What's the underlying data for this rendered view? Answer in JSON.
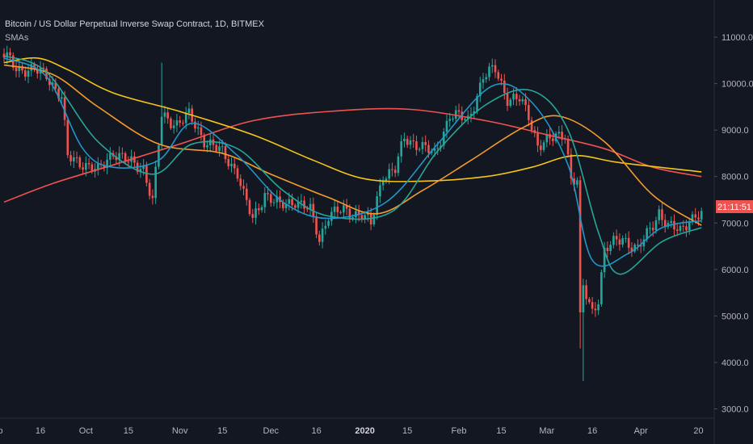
{
  "header": {
    "title": "Bitcoin / US Dollar Perpetual Inverse Swap Contract, 1D, BITMEX",
    "indicator": "SMAs"
  },
  "current_price_label": "21:11:51",
  "colors": {
    "background": "#131722",
    "up": "#26a69a",
    "down": "#ef5350",
    "axis_text": "#b2b5be",
    "price_tag": "#ef5350"
  },
  "chart_data": {
    "type": "candlestick",
    "title": "Bitcoin / US Dollar Perpetual Inverse Swap Contract, 1D, BITMEX",
    "ylim": [
      2800,
      11800
    ],
    "y_ticks": [
      {
        "value": 11000,
        "label": "11000.0"
      },
      {
        "value": 10000,
        "label": "10000.0"
      },
      {
        "value": 9000,
        "label": "9000.0"
      },
      {
        "value": 8000,
        "label": "8000.0"
      },
      {
        "value": 7000,
        "label": "7000.0"
      },
      {
        "value": 6000,
        "label": "6000.0"
      },
      {
        "value": 5000,
        "label": "5000.0"
      },
      {
        "value": 4000,
        "label": "4000.0"
      },
      {
        "value": 3000,
        "label": "3000.0"
      }
    ],
    "x_start": "2019-09-04",
    "x_end": "2020-04-22",
    "x_ticks": [
      {
        "label": "Sep",
        "date": "2019-09-01",
        "bold": false
      },
      {
        "label": "16",
        "date": "2019-09-16",
        "bold": false
      },
      {
        "label": "Oct",
        "date": "2019-10-01",
        "bold": false
      },
      {
        "label": "15",
        "date": "2019-10-15",
        "bold": false
      },
      {
        "label": "Nov",
        "date": "2019-11-01",
        "bold": false
      },
      {
        "label": "15",
        "date": "2019-11-15",
        "bold": false
      },
      {
        "label": "Dec",
        "date": "2019-12-01",
        "bold": false
      },
      {
        "label": "16",
        "date": "2019-12-16",
        "bold": false
      },
      {
        "label": "2020",
        "date": "2020-01-01",
        "bold": true
      },
      {
        "label": "15",
        "date": "2020-01-15",
        "bold": false
      },
      {
        "label": "Feb",
        "date": "2020-02-01",
        "bold": false
      },
      {
        "label": "15",
        "date": "2020-02-15",
        "bold": false
      },
      {
        "label": "Mar",
        "date": "2020-03-01",
        "bold": false
      },
      {
        "label": "16",
        "date": "2020-03-16",
        "bold": false
      },
      {
        "label": "Apr",
        "date": "2020-04-01",
        "bold": false
      },
      {
        "label": "20",
        "date": "2020-04-20",
        "bold": false
      }
    ],
    "close_anchors": [
      [
        "2019-09-04",
        10600
      ],
      [
        "2019-09-08",
        10350
      ],
      [
        "2019-09-12",
        10300
      ],
      [
        "2019-09-18",
        10200
      ],
      [
        "2019-09-23",
        9700
      ],
      [
        "2019-09-25",
        8400
      ],
      [
        "2019-09-30",
        8300
      ],
      [
        "2019-10-05",
        8100
      ],
      [
        "2019-10-10",
        8550
      ],
      [
        "2019-10-15",
        8300
      ],
      [
        "2019-10-20",
        8200
      ],
      [
        "2019-10-23",
        7450
      ],
      [
        "2019-10-26",
        9300
      ],
      [
        "2019-10-31",
        9150
      ],
      [
        "2019-11-04",
        9300
      ],
      [
        "2019-11-09",
        8800
      ],
      [
        "2019-11-15",
        8500
      ],
      [
        "2019-11-20",
        8100
      ],
      [
        "2019-11-22",
        7600
      ],
      [
        "2019-11-25",
        7050
      ],
      [
        "2019-11-29",
        7650
      ],
      [
        "2019-12-04",
        7350
      ],
      [
        "2019-12-09",
        7500
      ],
      [
        "2019-12-14",
        7250
      ],
      [
        "2019-12-17",
        6650
      ],
      [
        "2019-12-20",
        7200
      ],
      [
        "2019-12-25",
        7250
      ],
      [
        "2019-12-31",
        7200
      ],
      [
        "2020-01-03",
        6950
      ],
      [
        "2020-01-07",
        8050
      ],
      [
        "2020-01-11",
        8150
      ],
      [
        "2020-01-14",
        8800
      ],
      [
        "2020-01-19",
        8700
      ],
      [
        "2020-01-24",
        8450
      ],
      [
        "2020-01-29",
        9350
      ],
      [
        "2020-02-04",
        9200
      ],
      [
        "2020-02-09",
        10150
      ],
      [
        "2020-02-13",
        10300
      ],
      [
        "2020-02-17",
        9700
      ],
      [
        "2020-02-21",
        9650
      ],
      [
        "2020-02-24",
        9300
      ],
      [
        "2020-02-27",
        8700
      ],
      [
        "2020-03-03",
        8800
      ],
      [
        "2020-03-07",
        8950
      ],
      [
        "2020-03-09",
        7950
      ],
      [
        "2020-03-11",
        7900
      ],
      [
        "2020-03-12",
        4900
      ],
      [
        "2020-03-13",
        5600
      ],
      [
        "2020-03-16",
        5100
      ],
      [
        "2020-03-18",
        5400
      ],
      [
        "2020-03-20",
        6400
      ],
      [
        "2020-03-26",
        6700
      ],
      [
        "2020-03-31",
        6400
      ],
      [
        "2020-04-03",
        6750
      ],
      [
        "2020-04-07",
        7250
      ],
      [
        "2020-04-10",
        6900
      ],
      [
        "2020-04-14",
        6850
      ],
      [
        "2020-04-17",
        7100
      ],
      [
        "2020-04-21",
        7150
      ]
    ],
    "low_spikes": [
      [
        "2020-03-13",
        3600
      ],
      [
        "2020-03-12",
        4300
      ]
    ],
    "high_spikes": [
      [
        "2019-10-26",
        10450
      ]
    ],
    "series": [
      {
        "color": "#ef5350",
        "points": [
          [
            "2019-09-04",
            7450
          ],
          [
            "2019-09-20",
            7850
          ],
          [
            "2019-10-10",
            8250
          ],
          [
            "2019-11-01",
            8700
          ],
          [
            "2019-11-25",
            9200
          ],
          [
            "2019-12-20",
            9400
          ],
          [
            "2020-01-15",
            9450
          ],
          [
            "2020-02-10",
            9200
          ],
          [
            "2020-03-01",
            8900
          ],
          [
            "2020-03-20",
            8600
          ],
          [
            "2020-04-05",
            8200
          ],
          [
            "2020-04-21",
            8000
          ]
        ]
      },
      {
        "color": "#f5c518",
        "points": [
          [
            "2019-09-04",
            10450
          ],
          [
            "2019-09-15",
            10550
          ],
          [
            "2019-09-25",
            10300
          ],
          [
            "2019-10-10",
            9800
          ],
          [
            "2019-11-01",
            9400
          ],
          [
            "2019-11-25",
            8900
          ],
          [
            "2019-12-15",
            8350
          ],
          [
            "2020-01-01",
            7950
          ],
          [
            "2020-01-20",
            7900
          ],
          [
            "2020-02-10",
            8000
          ],
          [
            "2020-02-25",
            8200
          ],
          [
            "2020-03-10",
            8450
          ],
          [
            "2020-03-25",
            8300
          ],
          [
            "2020-04-21",
            8100
          ]
        ]
      },
      {
        "color": "#f59b2b",
        "points": [
          [
            "2019-09-04",
            10400
          ],
          [
            "2019-09-20",
            10200
          ],
          [
            "2019-10-05",
            9500
          ],
          [
            "2019-10-25",
            8700
          ],
          [
            "2019-11-15",
            8500
          ],
          [
            "2019-12-01",
            8050
          ],
          [
            "2019-12-20",
            7550
          ],
          [
            "2020-01-05",
            7200
          ],
          [
            "2020-01-20",
            7700
          ],
          [
            "2020-02-05",
            8350
          ],
          [
            "2020-02-22",
            9050
          ],
          [
            "2020-03-05",
            9300
          ],
          [
            "2020-03-20",
            8750
          ],
          [
            "2020-04-05",
            7600
          ],
          [
            "2020-04-21",
            6950
          ]
        ]
      },
      {
        "color": "#26a69a",
        "points": [
          [
            "2019-09-04",
            10600
          ],
          [
            "2019-09-18",
            10250
          ],
          [
            "2019-10-05",
            8750
          ],
          [
            "2019-10-23",
            8050
          ],
          [
            "2019-11-05",
            8700
          ],
          [
            "2019-11-20",
            8600
          ],
          [
            "2019-12-05",
            7700
          ],
          [
            "2019-12-20",
            7150
          ],
          [
            "2020-01-10",
            7250
          ],
          [
            "2020-01-25",
            8550
          ],
          [
            "2020-02-10",
            9550
          ],
          [
            "2020-02-25",
            9850
          ],
          [
            "2020-03-08",
            9000
          ],
          [
            "2020-03-18",
            6800
          ],
          [
            "2020-03-25",
            5900
          ],
          [
            "2020-04-08",
            6600
          ],
          [
            "2020-04-21",
            6900
          ]
        ]
      },
      {
        "color": "#2196c8",
        "points": [
          [
            "2019-09-04",
            10550
          ],
          [
            "2019-09-18",
            10150
          ],
          [
            "2019-09-30",
            8600
          ],
          [
            "2019-10-10",
            8200
          ],
          [
            "2019-10-25",
            8350
          ],
          [
            "2019-11-05",
            9150
          ],
          [
            "2019-11-20",
            8450
          ],
          [
            "2019-12-05",
            7450
          ],
          [
            "2019-12-20",
            7100
          ],
          [
            "2020-01-08",
            7450
          ],
          [
            "2020-01-25",
            8700
          ],
          [
            "2020-02-12",
            9950
          ],
          [
            "2020-02-25",
            9600
          ],
          [
            "2020-03-08",
            8250
          ],
          [
            "2020-03-16",
            6200
          ],
          [
            "2020-03-28",
            6350
          ],
          [
            "2020-04-08",
            6900
          ],
          [
            "2020-04-21",
            7050
          ]
        ]
      }
    ]
  }
}
